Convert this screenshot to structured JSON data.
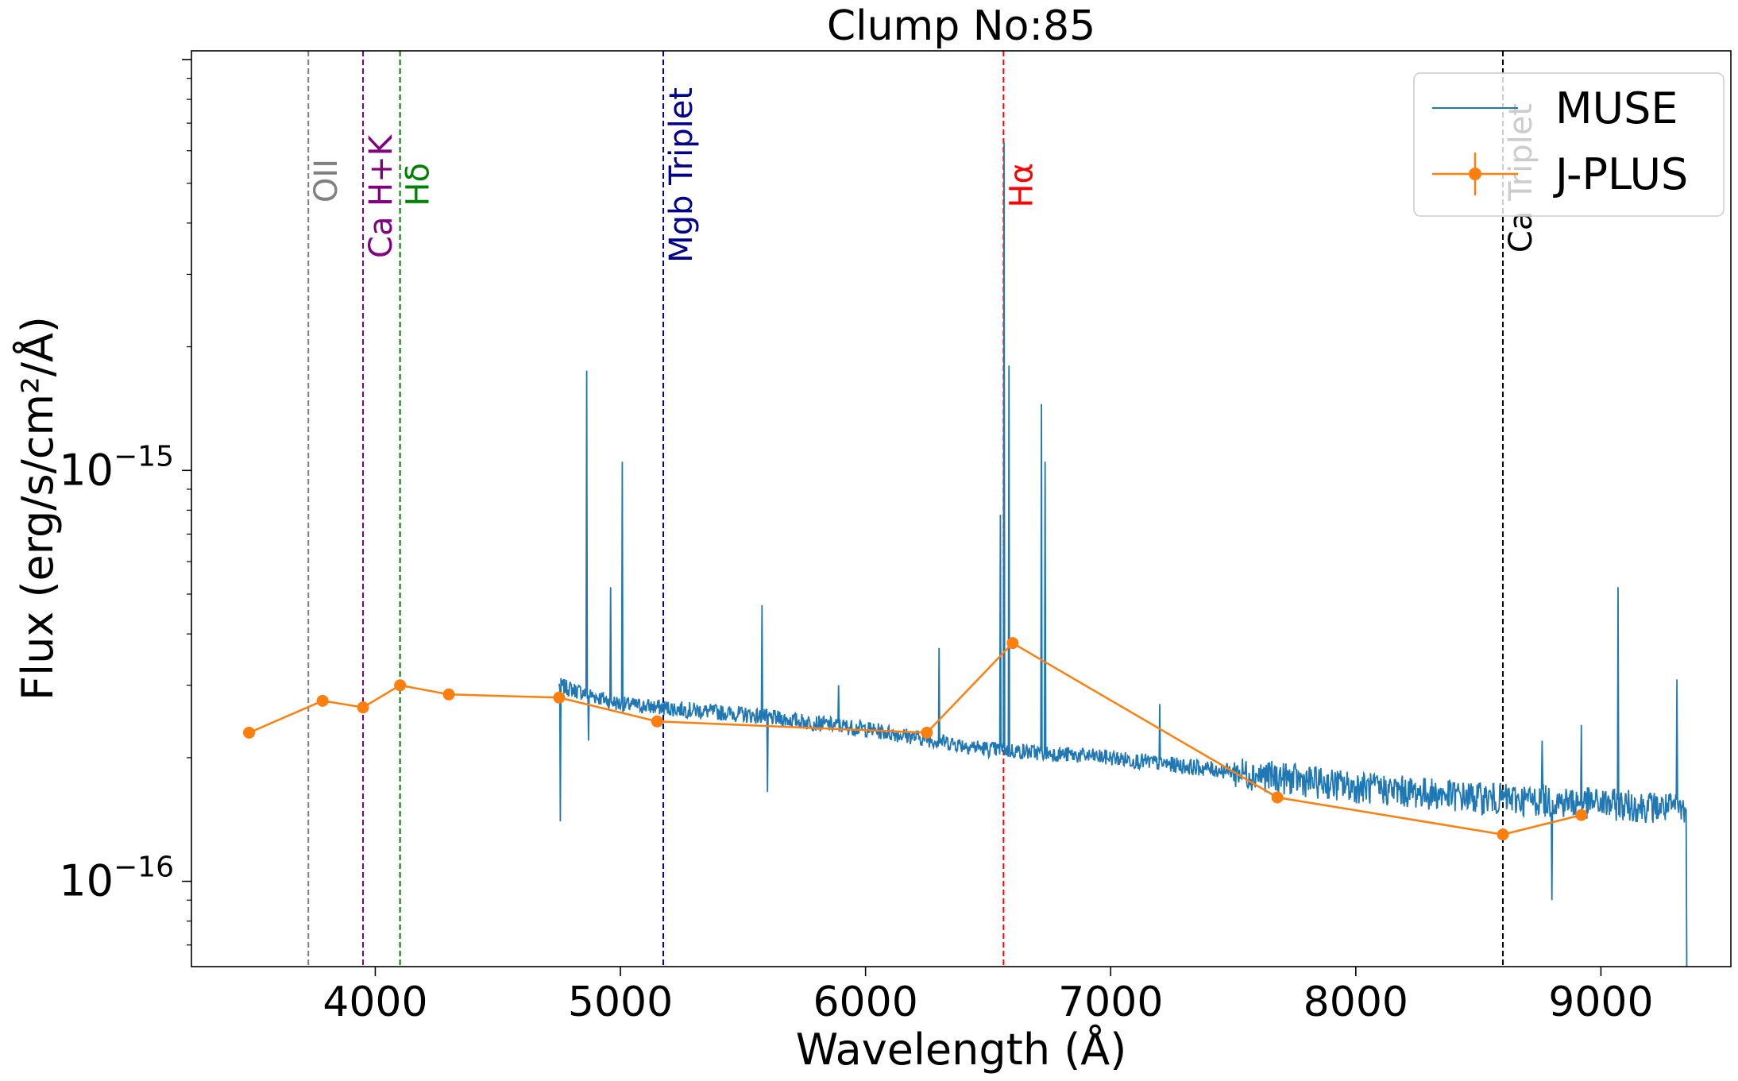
{
  "chart_data": {
    "type": "line",
    "title": "Clump No:85",
    "xlabel": "Wavelength (Å)",
    "ylabel": "Flux (erg/s/cm²/Å)",
    "xlim": [
      3250,
      9530
    ],
    "ylim": [
      6.2e-17,
      1.05e-14
    ],
    "yscale": "log",
    "x_ticks": [
      4000,
      5000,
      6000,
      7000,
      8000,
      9000
    ],
    "x_tick_labels": [
      "4000",
      "5000",
      "6000",
      "7000",
      "8000",
      "9000"
    ],
    "y_ticks": [
      {
        "value": 1e-15,
        "base": "10",
        "exponent": "−15"
      },
      {
        "value": 1e-16,
        "base": "10",
        "exponent": "−16"
      }
    ],
    "grid": false,
    "legend": {
      "position": "top-right"
    },
    "series": [
      {
        "name": "MUSE",
        "color": "#1f77b4",
        "range": [
          4750,
          9350
        ],
        "continuum": [
          [
            4750,
            3e-16
          ],
          [
            5000,
            2.7e-16
          ],
          [
            5500,
            2.55e-16
          ],
          [
            6000,
            2.35e-16
          ],
          [
            6500,
            2.1e-16
          ],
          [
            7000,
            2e-16
          ],
          [
            7500,
            1.85e-16
          ],
          [
            8000,
            1.7e-16
          ],
          [
            8500,
            1.6e-16
          ],
          [
            9000,
            1.55e-16
          ],
          [
            9350,
            1.5e-16
          ]
        ],
        "peaks": [
          [
            4753,
            1.4e-16
          ],
          [
            4861,
            1.75e-15
          ],
          [
            4870,
            2.2e-16
          ],
          [
            4959,
            5.2e-16
          ],
          [
            5007,
            1.05e-15
          ],
          [
            5577,
            4.7e-16
          ],
          [
            5600,
            1.65e-16
          ],
          [
            5890,
            3e-16
          ],
          [
            6300,
            3.7e-16
          ],
          [
            6548,
            7.8e-16
          ],
          [
            6563,
            6.3e-15
          ],
          [
            6583,
            1.8e-15
          ],
          [
            6716,
            1.45e-15
          ],
          [
            6731,
            1.05e-15
          ],
          [
            7200,
            2.7e-16
          ],
          [
            8800,
            9e-17
          ],
          [
            8760,
            2.2e-16
          ],
          [
            8920,
            2.4e-16
          ],
          [
            9070,
            5.2e-16
          ],
          [
            9240,
            1.55e-16
          ],
          [
            9310,
            3.1e-16
          ],
          [
            9350,
            6.2e-17
          ]
        ]
      },
      {
        "name": "J-PLUS",
        "color": "#ff7f0e",
        "points": [
          [
            3485,
            2.3e-16
          ],
          [
            3785,
            2.75e-16
          ],
          [
            3950,
            2.65e-16
          ],
          [
            4101,
            3e-16
          ],
          [
            4300,
            2.85e-16
          ],
          [
            4750,
            2.8e-16
          ],
          [
            5150,
            2.45e-16
          ],
          [
            6250,
            2.3e-16
          ],
          [
            6600,
            3.8e-16
          ],
          [
            7680,
            1.6e-16
          ],
          [
            8600,
            1.3e-16
          ],
          [
            8920,
            1.45e-16
          ]
        ]
      }
    ],
    "annotations": [
      {
        "label": "OII",
        "x": 3727,
        "color": "#808080"
      },
      {
        "label": "Ca H+K",
        "x": 3950,
        "color": "#800080"
      },
      {
        "label": "Hδ",
        "x": 4101,
        "color": "#008000"
      },
      {
        "label": "Mgb Triplet",
        "x": 5175,
        "color": "#00008b"
      },
      {
        "label": "Hα",
        "x": 6563,
        "color": "#ff0000"
      },
      {
        "label": "Ca Triplet",
        "x": 8600,
        "color": "#000000"
      }
    ]
  }
}
